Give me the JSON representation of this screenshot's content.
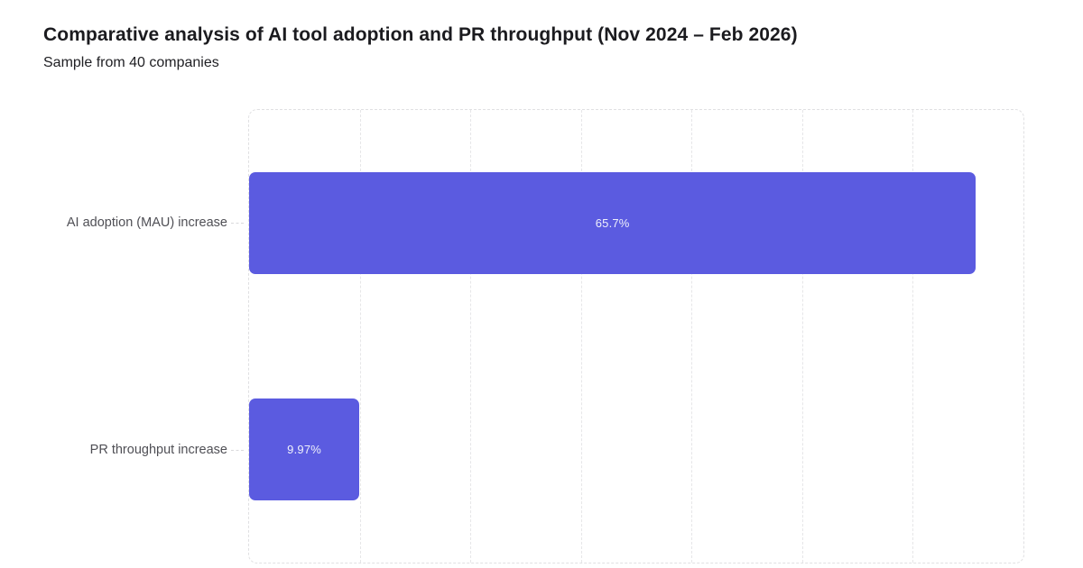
{
  "header": {
    "title": "Comparative analysis of AI tool adoption and PR throughput (Nov 2024 – Feb 2026)",
    "subtitle": "Sample from 40 companies"
  },
  "chart_data": {
    "type": "bar",
    "orientation": "horizontal",
    "title": "Comparative analysis of AI tool adoption and PR throughput (Nov 2024 – Feb 2026)",
    "subtitle": "Sample from 40 companies",
    "categories": [
      "AI adoption (MAU) increase",
      "PR throughput increase"
    ],
    "values": [
      65.7,
      9.97
    ],
    "value_labels": [
      "65.7%",
      "9.97%"
    ],
    "xlabel": "",
    "ylabel": "",
    "xlim": [
      0,
      70
    ],
    "grid_step": 10,
    "grid": "vertical-dashed",
    "legend_position": "none",
    "colors": {
      "bar": "#5b5be0",
      "bar_value_text": "#eef0fb",
      "category_label": "#4f4f55",
      "grid_line": "#e6e6e8",
      "plot_border": "#e0e0e2",
      "title_text": "#1b1b1f",
      "background": "#ffffff"
    }
  }
}
